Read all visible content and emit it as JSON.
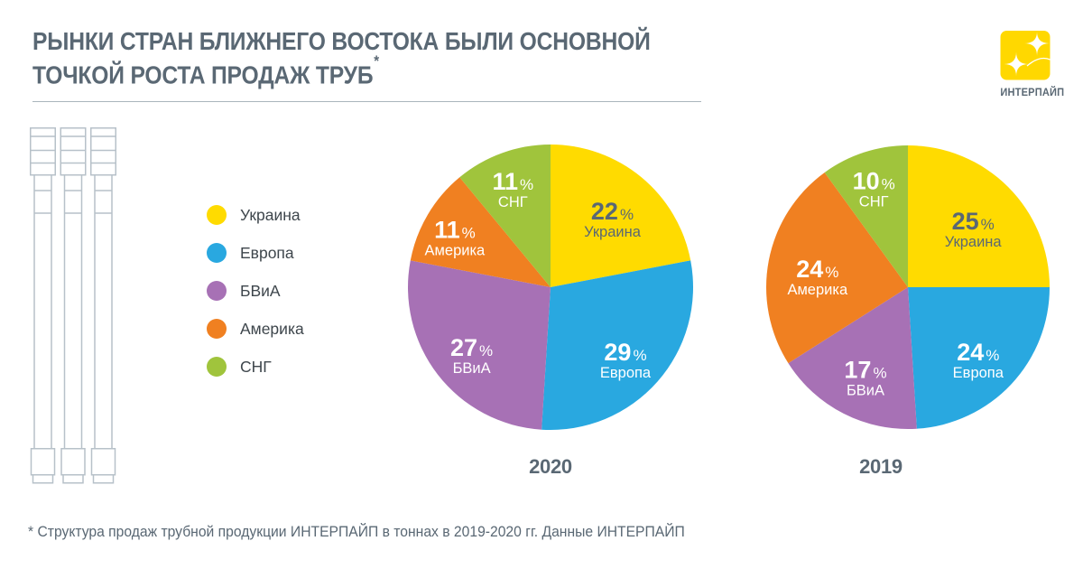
{
  "header": {
    "title_line1": "РЫНКИ СТРАН БЛИЖНЕГО ВОСТОКА БЫЛИ ОСНОВНОЙ",
    "title_line2": "ТОЧКОЙ РОСТА ПРОДАЖ ТРУБ",
    "footnote_marker": "*"
  },
  "logo": {
    "company": "ИНТЕРПАЙП",
    "brand_color": "#FFD800"
  },
  "legend": [
    {
      "label": "Украина",
      "color": "#FFDB00"
    },
    {
      "label": "Европа",
      "color": "#29A8E0"
    },
    {
      "label": "БВиА",
      "color": "#A771B5"
    },
    {
      "label": "Америка",
      "color": "#F08021"
    },
    {
      "label": "СНГ",
      "color": "#A0C43C"
    }
  ],
  "chart_data": [
    {
      "type": "pie",
      "title": "2020",
      "categories": [
        "Украина",
        "Европа",
        "БВиА",
        "Америка",
        "СНГ"
      ],
      "values": [
        22,
        29,
        27,
        11,
        11
      ],
      "unit": "%",
      "colors": [
        "#FFDB00",
        "#29A8E0",
        "#A771B5",
        "#F08021",
        "#A0C43C"
      ],
      "label_colors": [
        "#5A6874",
        "#FFFFFF",
        "#FFFFFF",
        "#FFFFFF",
        "#FFFFFF"
      ],
      "label_r": [
        0.68,
        0.7,
        0.7,
        0.78,
        0.78
      ],
      "start_angle_deg": 0,
      "direction": "clockwise",
      "legend_position": "left"
    },
    {
      "type": "pie",
      "title": "2019",
      "categories": [
        "Украина",
        "Европа",
        "БВиА",
        "Америка",
        "СНГ"
      ],
      "values": [
        25,
        24,
        17,
        24,
        10
      ],
      "unit": "%",
      "colors": [
        "#FFDB00",
        "#29A8E0",
        "#A771B5",
        "#F08021",
        "#A0C43C"
      ],
      "label_colors": [
        "#5A6874",
        "#FFFFFF",
        "#FFFFFF",
        "#FFFFFF",
        "#FFFFFF"
      ],
      "label_r": [
        0.65,
        0.68,
        0.66,
        0.65,
        0.78
      ],
      "start_angle_deg": 0,
      "direction": "clockwise",
      "legend_position": "left"
    }
  ],
  "footnote": {
    "text": "* Структура продаж трубной продукции ИНТЕРПАЙП в тоннах в 2019-2020 гг. Данные ИНТЕРПАЙП"
  }
}
